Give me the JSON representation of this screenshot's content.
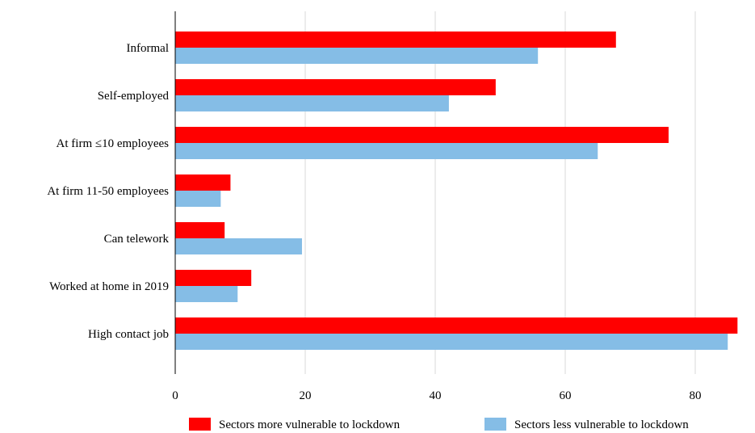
{
  "chart_data": {
    "type": "bar",
    "orientation": "horizontal",
    "categories": [
      "Informal",
      "Self-employed",
      "At firm ≤10 employees",
      "At firm 11-50 employees",
      "Can telework",
      "Worked at home in 2019",
      "High contact job"
    ],
    "series": [
      {
        "name": "Sectors more vulnerable to lockdown",
        "color": "#ff0000",
        "values": [
          67.8,
          49.3,
          75.9,
          8.5,
          7.6,
          11.7,
          86.5
        ]
      },
      {
        "name": "Sectors less vulnerable to lockdown",
        "color": "#85bde6",
        "values": [
          55.8,
          42.1,
          65.0,
          7.0,
          19.5,
          9.6,
          85.0
        ]
      }
    ],
    "xlim": [
      0,
      87
    ],
    "xticks": [
      0,
      20,
      40,
      60,
      80
    ],
    "grid": "vertical",
    "legend_position": "bottom"
  }
}
